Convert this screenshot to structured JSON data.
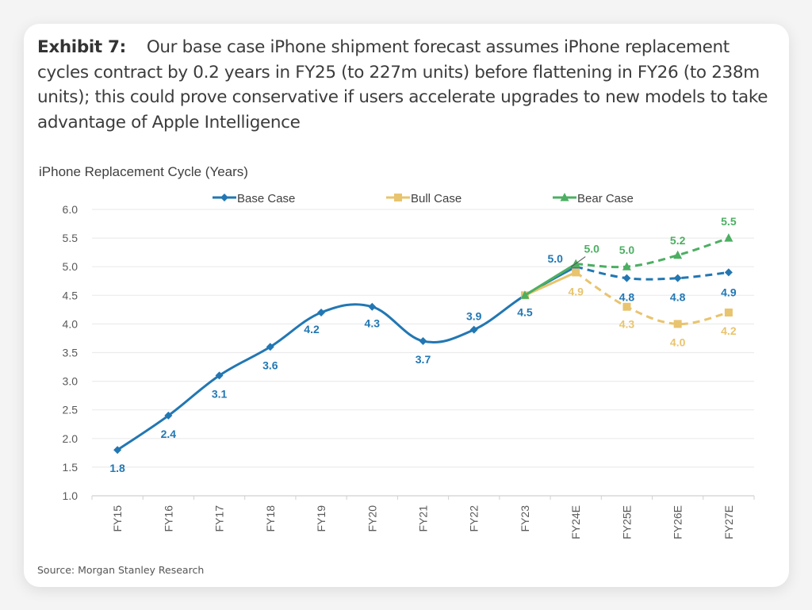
{
  "caption": {
    "label": "Exhibit 7:",
    "text": "Our base case iPhone shipment forecast assumes iPhone replacement cycles contract by 0.2 years in FY25 (to 227m units) before flattening in FY26 (to 238m units); this could prove conservative if users accelerate upgrades to new models to take advantage of Apple Intelligence"
  },
  "source": "Source: Morgan Stanley Research",
  "colors": {
    "base": "#2277b3",
    "bull": "#e8c46e",
    "bear": "#4caf62"
  },
  "chart_data": {
    "type": "line",
    "title": "iPhone Replacement Cycle (Years)",
    "xlabel": "",
    "ylabel": "",
    "ylim": [
      1.0,
      6.0
    ],
    "yticks": [
      "6.0",
      "5.5",
      "5.0",
      "4.5",
      "4.0",
      "3.5",
      "3.0",
      "2.5",
      "2.0",
      "1.5",
      "1.0"
    ],
    "grid": true,
    "legend_position": "top",
    "categories": [
      "FY15",
      "FY16",
      "FY17",
      "FY18",
      "FY19",
      "FY20",
      "FY21",
      "FY22",
      "FY23",
      "FY24E",
      "FY25E",
      "FY26E",
      "FY27E"
    ],
    "series": [
      {
        "name": "Base Case",
        "marker": "diamond",
        "values": [
          1.8,
          2.4,
          3.1,
          3.6,
          4.2,
          4.3,
          3.7,
          3.9,
          4.5,
          5.0,
          4.8,
          4.8,
          4.9
        ],
        "labels": [
          "1.8",
          "2.4",
          "3.1",
          "3.6",
          "4.2",
          "4.3",
          "3.7",
          "3.9",
          "4.5",
          "5.0",
          "4.8",
          "4.8",
          "4.9"
        ],
        "forecast_from": "FY24E"
      },
      {
        "name": "Bull Case",
        "marker": "square",
        "values": [
          null,
          null,
          null,
          null,
          null,
          null,
          null,
          null,
          4.5,
          4.9,
          4.3,
          4.0,
          4.2
        ],
        "labels": [
          null,
          null,
          null,
          null,
          null,
          null,
          null,
          null,
          null,
          "4.9",
          "4.3",
          "4.0",
          "4.2"
        ],
        "forecast_from": "FY24E"
      },
      {
        "name": "Bear Case",
        "marker": "triangle",
        "values": [
          null,
          null,
          null,
          null,
          null,
          null,
          null,
          null,
          4.5,
          5.05,
          5.0,
          5.2,
          5.5
        ],
        "labels": [
          null,
          null,
          null,
          null,
          null,
          null,
          null,
          null,
          null,
          "5.0",
          "5.0",
          "5.2",
          "5.5"
        ],
        "forecast_from": "FY24E"
      }
    ]
  }
}
